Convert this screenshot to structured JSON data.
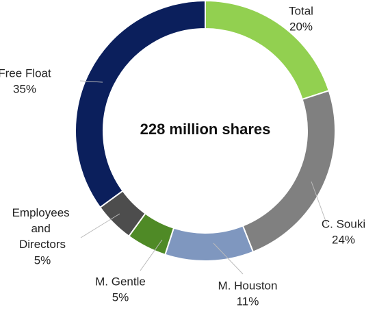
{
  "chart_data": {
    "type": "donut",
    "center_text": "228 million shares",
    "categories": [
      "Total",
      "C. Souki",
      "M. Houston",
      "M. Gentle",
      "Employees and Directors",
      "Free Float"
    ],
    "values": [
      20,
      24,
      11,
      5,
      5,
      35
    ],
    "value_labels": [
      "20%",
      "24%",
      "11%",
      "5%",
      "5%",
      "35%"
    ],
    "colors": [
      "#92d050",
      "#808080",
      "#7f97bf",
      "#4f8a26",
      "#4d4d4d",
      "#0b1f5c"
    ]
  }
}
